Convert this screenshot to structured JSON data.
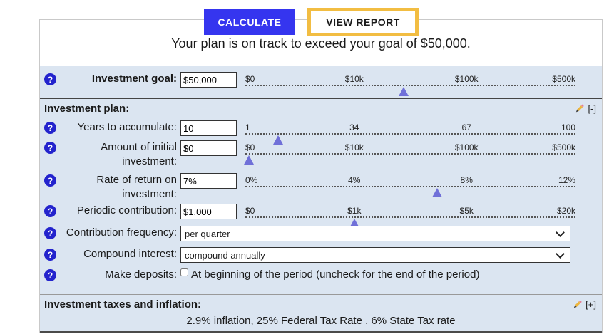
{
  "tabs": {
    "calculate_label": "CALCULATE",
    "view_report_label": "VIEW REPORT"
  },
  "headline": "Your plan is on track to exceed your goal of $50,000.",
  "goal": {
    "label": "Investment goal:",
    "value": "$50,000",
    "slider": {
      "ticks": [
        {
          "label": "$0",
          "pct": 0
        },
        {
          "label": "$10k",
          "pct": 33
        },
        {
          "label": "$100k",
          "pct": 67
        },
        {
          "label": "$500k",
          "pct": 100
        }
      ],
      "marker_pct": 48
    }
  },
  "plan": {
    "title": "Investment plan:",
    "toggle": "[-]",
    "years": {
      "label": "Years to accumulate:",
      "value": "10",
      "slider": {
        "ticks": [
          {
            "label": "1",
            "pct": 0
          },
          {
            "label": "34",
            "pct": 33
          },
          {
            "label": "67",
            "pct": 67
          },
          {
            "label": "100",
            "pct": 100
          }
        ],
        "marker_pct": 10
      }
    },
    "initial": {
      "label": "Amount of initial investment:",
      "value": "$0",
      "slider": {
        "ticks": [
          {
            "label": "$0",
            "pct": 0
          },
          {
            "label": "$10k",
            "pct": 33
          },
          {
            "label": "$100k",
            "pct": 67
          },
          {
            "label": "$500k",
            "pct": 100
          }
        ],
        "marker_pct": 1
      }
    },
    "rate": {
      "label": "Rate of return on investment:",
      "value": "7%",
      "slider": {
        "ticks": [
          {
            "label": "0%",
            "pct": 0
          },
          {
            "label": "4%",
            "pct": 33
          },
          {
            "label": "8%",
            "pct": 67
          },
          {
            "label": "12%",
            "pct": 100
          }
        ],
        "marker_pct": 58
      }
    },
    "periodic": {
      "label": "Periodic contribution:",
      "value": "$1,000",
      "slider": {
        "ticks": [
          {
            "label": "$0",
            "pct": 0
          },
          {
            "label": "$1k",
            "pct": 33
          },
          {
            "label": "$5k",
            "pct": 67
          },
          {
            "label": "$20k",
            "pct": 100
          }
        ],
        "marker_pct": 33
      }
    },
    "frequency": {
      "label": "Contribution frequency:",
      "value": "per quarter"
    },
    "compound": {
      "label": "Compound interest:",
      "value": "compound annually"
    },
    "deposits": {
      "label": "Make deposits:",
      "checked": false,
      "text": "At beginning of the period (uncheck for the end of the period)"
    }
  },
  "taxes": {
    "title": "Investment taxes and inflation:",
    "toggle": "[+]",
    "summary": "2.9% inflation, 25% Federal Tax Rate , 6% State Tax rate"
  },
  "icons": {
    "help": "?",
    "pencil": "edit-pencil",
    "chevron": "chevron-down"
  },
  "colors": {
    "accent_blue": "#3535ef",
    "tab_gold": "#f2bd42",
    "row_bg": "#dbe5f1",
    "help_blue": "#2323cd",
    "marker_purple": "#7070d8"
  }
}
